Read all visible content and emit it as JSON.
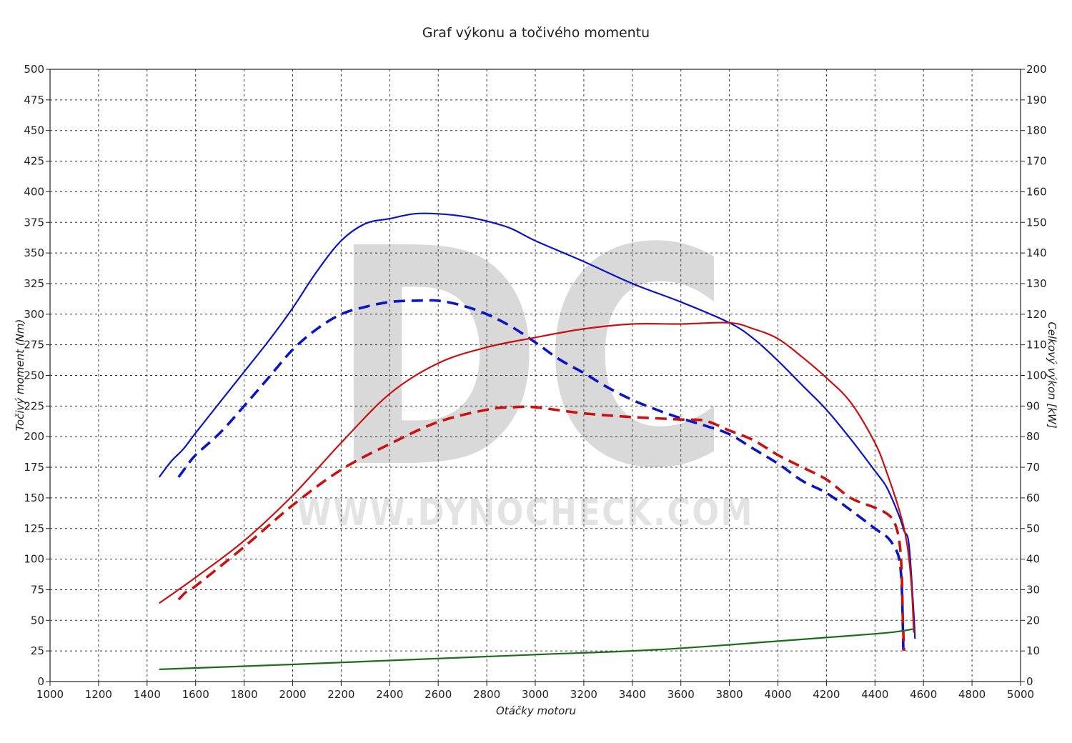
{
  "chart_data": {
    "type": "line",
    "title": "Graf výkonu a točivého momentu",
    "xlabel": "Otáčky motoru",
    "ylabel_left": "Točivý moment (Nm)",
    "ylabel_right": "Celkový výkon [kW]",
    "xlim": [
      1000,
      5000
    ],
    "ylim_left": [
      0,
      500
    ],
    "ylim_right": [
      0,
      200
    ],
    "x_ticks": [
      1000,
      1200,
      1400,
      1600,
      1800,
      2000,
      2200,
      2400,
      2600,
      2800,
      3000,
      3200,
      3400,
      3600,
      3800,
      4000,
      4200,
      4400,
      4600,
      4800,
      5000
    ],
    "y_ticks_left": [
      0,
      25,
      50,
      75,
      100,
      125,
      150,
      175,
      200,
      225,
      250,
      275,
      300,
      325,
      350,
      375,
      400,
      425,
      450,
      475,
      500
    ],
    "y_ticks_right": [
      0,
      10,
      20,
      30,
      40,
      50,
      60,
      70,
      80,
      90,
      100,
      110,
      120,
      130,
      140,
      150,
      160,
      170,
      180,
      190,
      200
    ],
    "grid": true,
    "watermark": {
      "logo": "DC",
      "text": "WWW.DYNOCHECK.COM"
    },
    "series": [
      {
        "color": "#0a14c8",
        "dash": "solid",
        "axis": "left",
        "points": [
          [
            1450,
            167
          ],
          [
            1500,
            180
          ],
          [
            1550,
            190
          ],
          [
            1600,
            203
          ],
          [
            1700,
            228
          ],
          [
            1800,
            253
          ],
          [
            1900,
            278
          ],
          [
            2000,
            305
          ],
          [
            2100,
            335
          ],
          [
            2200,
            360
          ],
          [
            2300,
            374
          ],
          [
            2400,
            378
          ],
          [
            2500,
            382
          ],
          [
            2600,
            382
          ],
          [
            2700,
            380
          ],
          [
            2800,
            376
          ],
          [
            2900,
            370
          ],
          [
            3000,
            360
          ],
          [
            3200,
            343
          ],
          [
            3400,
            325
          ],
          [
            3600,
            310
          ],
          [
            3800,
            293
          ],
          [
            3900,
            280
          ],
          [
            4000,
            262
          ],
          [
            4100,
            242
          ],
          [
            4200,
            222
          ],
          [
            4300,
            198
          ],
          [
            4400,
            172
          ],
          [
            4450,
            158
          ],
          [
            4500,
            135
          ],
          [
            4520,
            123
          ],
          [
            4540,
            112
          ],
          [
            4560,
            55
          ],
          [
            4565,
            35
          ]
        ]
      },
      {
        "color": "#0a14c8",
        "dash": "dashed",
        "axis": "left",
        "points": [
          [
            1530,
            167
          ],
          [
            1560,
            175
          ],
          [
            1600,
            185
          ],
          [
            1700,
            203
          ],
          [
            1800,
            225
          ],
          [
            1900,
            248
          ],
          [
            2000,
            271
          ],
          [
            2100,
            288
          ],
          [
            2200,
            300
          ],
          [
            2300,
            306
          ],
          [
            2400,
            310
          ],
          [
            2500,
            311
          ],
          [
            2600,
            311
          ],
          [
            2700,
            307
          ],
          [
            2800,
            300
          ],
          [
            2900,
            290
          ],
          [
            3000,
            277
          ],
          [
            3100,
            263
          ],
          [
            3200,
            252
          ],
          [
            3300,
            240
          ],
          [
            3400,
            230
          ],
          [
            3500,
            222
          ],
          [
            3600,
            215
          ],
          [
            3700,
            209
          ],
          [
            3800,
            202
          ],
          [
            3900,
            190
          ],
          [
            4000,
            178
          ],
          [
            4100,
            164
          ],
          [
            4200,
            154
          ],
          [
            4300,
            140
          ],
          [
            4400,
            125
          ],
          [
            4450,
            118
          ],
          [
            4480,
            110
          ],
          [
            4500,
            100
          ],
          [
            4510,
            80
          ],
          [
            4515,
            45
          ],
          [
            4517,
            25
          ]
        ]
      },
      {
        "color": "#cc1010",
        "dash": "solid",
        "axis": "left",
        "points": [
          [
            1450,
            64
          ],
          [
            1600,
            85
          ],
          [
            1800,
            115
          ],
          [
            2000,
            152
          ],
          [
            2200,
            195
          ],
          [
            2400,
            235
          ],
          [
            2600,
            260
          ],
          [
            2800,
            273
          ],
          [
            3000,
            281
          ],
          [
            3200,
            288
          ],
          [
            3400,
            292
          ],
          [
            3600,
            292
          ],
          [
            3800,
            293
          ],
          [
            3900,
            288
          ],
          [
            4000,
            280
          ],
          [
            4100,
            265
          ],
          [
            4200,
            248
          ],
          [
            4300,
            228
          ],
          [
            4400,
            195
          ],
          [
            4450,
            170
          ],
          [
            4500,
            140
          ],
          [
            4530,
            115
          ],
          [
            4550,
            80
          ],
          [
            4560,
            40
          ]
        ]
      },
      {
        "color": "#cc1010",
        "dash": "dashed",
        "axis": "left",
        "points": [
          [
            1530,
            67
          ],
          [
            1560,
            73
          ],
          [
            1600,
            78
          ],
          [
            1800,
            110
          ],
          [
            2000,
            144
          ],
          [
            2200,
            173
          ],
          [
            2400,
            194
          ],
          [
            2600,
            212
          ],
          [
            2800,
            222
          ],
          [
            2900,
            224
          ],
          [
            3000,
            224
          ],
          [
            3200,
            219
          ],
          [
            3400,
            216
          ],
          [
            3600,
            214
          ],
          [
            3700,
            213
          ],
          [
            3800,
            205
          ],
          [
            3900,
            197
          ],
          [
            4000,
            185
          ],
          [
            4100,
            175
          ],
          [
            4200,
            165
          ],
          [
            4300,
            150
          ],
          [
            4400,
            142
          ],
          [
            4450,
            137
          ],
          [
            4480,
            130
          ],
          [
            4500,
            115
          ],
          [
            4510,
            90
          ],
          [
            4515,
            50
          ],
          [
            4520,
            25
          ]
        ]
      },
      {
        "color": "#1a6e1a",
        "dash": "solid",
        "axis": "left",
        "points": [
          [
            1450,
            10
          ],
          [
            2000,
            14
          ],
          [
            2500,
            18
          ],
          [
            3000,
            22
          ],
          [
            3500,
            26
          ],
          [
            4000,
            33
          ],
          [
            4400,
            39
          ],
          [
            4500,
            41
          ],
          [
            4560,
            43
          ]
        ]
      }
    ]
  }
}
